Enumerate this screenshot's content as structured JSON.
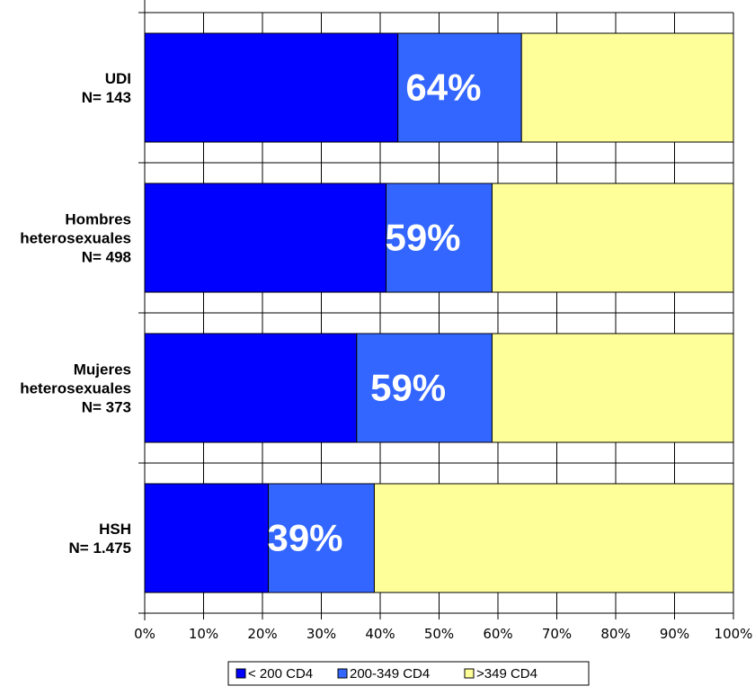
{
  "chart_data": {
    "type": "bar",
    "orientation": "horizontal",
    "stacked": true,
    "categories": [
      [
        "UDI",
        "N= 143"
      ],
      [
        "Hombres",
        "heterosexuales",
        "N= 498"
      ],
      [
        "Mujeres",
        "heterosexuales",
        "N= 373"
      ],
      [
        "HSH",
        "N= 1.475"
      ]
    ],
    "series": [
      {
        "name": "< 200 CD4",
        "color": "#0000ff",
        "values": [
          43,
          41,
          36,
          21
        ]
      },
      {
        "name": "200-349 CD4",
        "color": "#3366ff",
        "values": [
          21,
          18,
          23,
          18
        ]
      },
      {
        "name": ">349 CD4",
        "color": "#ffff99",
        "values": [
          36,
          41,
          41,
          61
        ]
      }
    ],
    "bar_labels": [
      "64%",
      "59%",
      "59%",
      "39%"
    ],
    "xlim": [
      0,
      100
    ],
    "xticks": [
      "0%",
      "10%",
      "20%",
      "30%",
      "40%",
      "50%",
      "60%",
      "70%",
      "80%",
      "90%",
      "100%"
    ],
    "grid": true,
    "legend_position": "bottom"
  }
}
